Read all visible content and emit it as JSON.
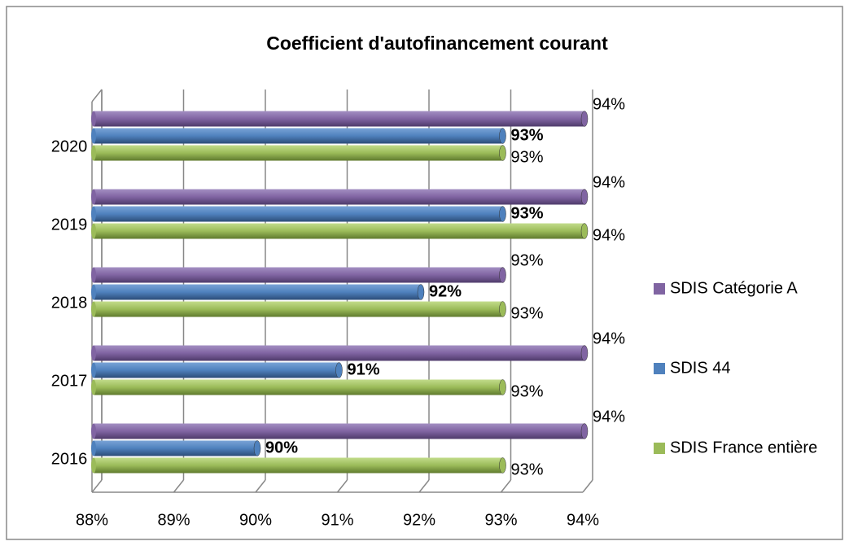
{
  "chart_data": {
    "type": "bar3d-horizontal",
    "title": "Coefficient d'autofinancement courant",
    "categories": [
      "2016",
      "2017",
      "2018",
      "2019",
      "2020"
    ],
    "series": [
      {
        "name": "SDIS Catégorie A",
        "color": "#8064a2",
        "values": [
          94,
          94,
          93,
          94,
          94
        ],
        "value_labels": [
          "94%",
          "94%",
          "93%",
          "94%",
          "94%"
        ]
      },
      {
        "name": "SDIS 44",
        "color": "#4f81bd",
        "values": [
          90,
          91,
          92,
          93,
          93
        ],
        "value_labels": [
          "90%",
          "91%",
          "92%",
          "93%",
          "93%"
        ]
      },
      {
        "name": "SDIS France entière",
        "color": "#9bbb59",
        "values": [
          93,
          93,
          93,
          94,
          93
        ],
        "value_labels": [
          "93%",
          "93%",
          "93%",
          "94%",
          "93%"
        ]
      }
    ],
    "xlim": [
      88,
      94
    ],
    "xticks": [
      {
        "value": 88,
        "label": "88%"
      },
      {
        "value": 89,
        "label": "89%"
      },
      {
        "value": 90,
        "label": "90%"
      },
      {
        "value": 91,
        "label": "91%"
      },
      {
        "value": 92,
        "label": "92%"
      },
      {
        "value": 93,
        "label": "93%"
      },
      {
        "value": 94,
        "label": "94%"
      }
    ],
    "grid": true,
    "legend": "right"
  }
}
